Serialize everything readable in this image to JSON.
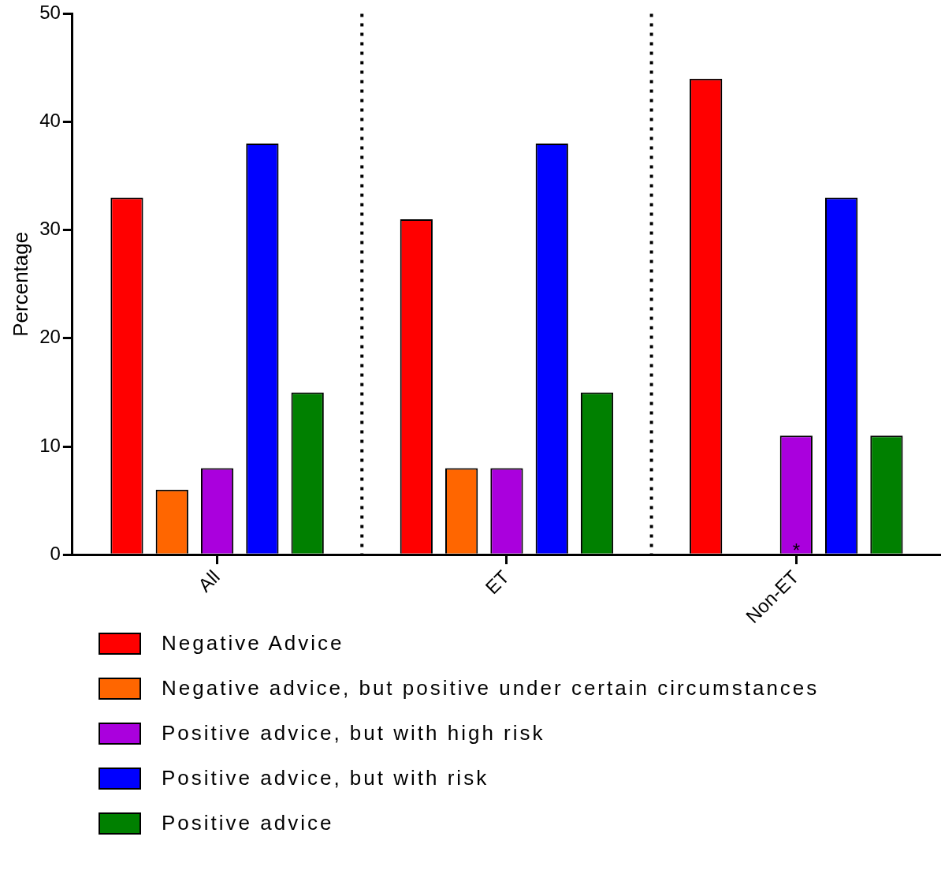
{
  "chart_data": {
    "type": "bar",
    "ylabel": "Percentage",
    "categories": [
      "All",
      "ET",
      "Non-ET"
    ],
    "series": [
      {
        "name": "Negative Advice",
        "color": "#ff0000",
        "values": [
          33,
          31,
          44
        ]
      },
      {
        "name": "Negative advice, but positive under certain circumstances",
        "color": "#ff6600",
        "values": [
          6,
          8,
          0
        ]
      },
      {
        "name": "Positive advice, but with high risk",
        "color": "#aa00dd",
        "values": [
          8,
          8,
          11
        ]
      },
      {
        "name": "Positive advice, but with risk",
        "color": "#0000ff",
        "values": [
          38,
          38,
          33
        ]
      },
      {
        "name": "Positive advice",
        "color": "#008000",
        "values": [
          15,
          15,
          11
        ]
      }
    ],
    "ylim": [
      0,
      50
    ],
    "yticks": [
      0,
      10,
      20,
      30,
      40,
      50
    ],
    "grid": false,
    "legend": "bottom",
    "annotations": [
      {
        "text": "*",
        "x": "Non-ET",
        "y": 0
      }
    ]
  }
}
